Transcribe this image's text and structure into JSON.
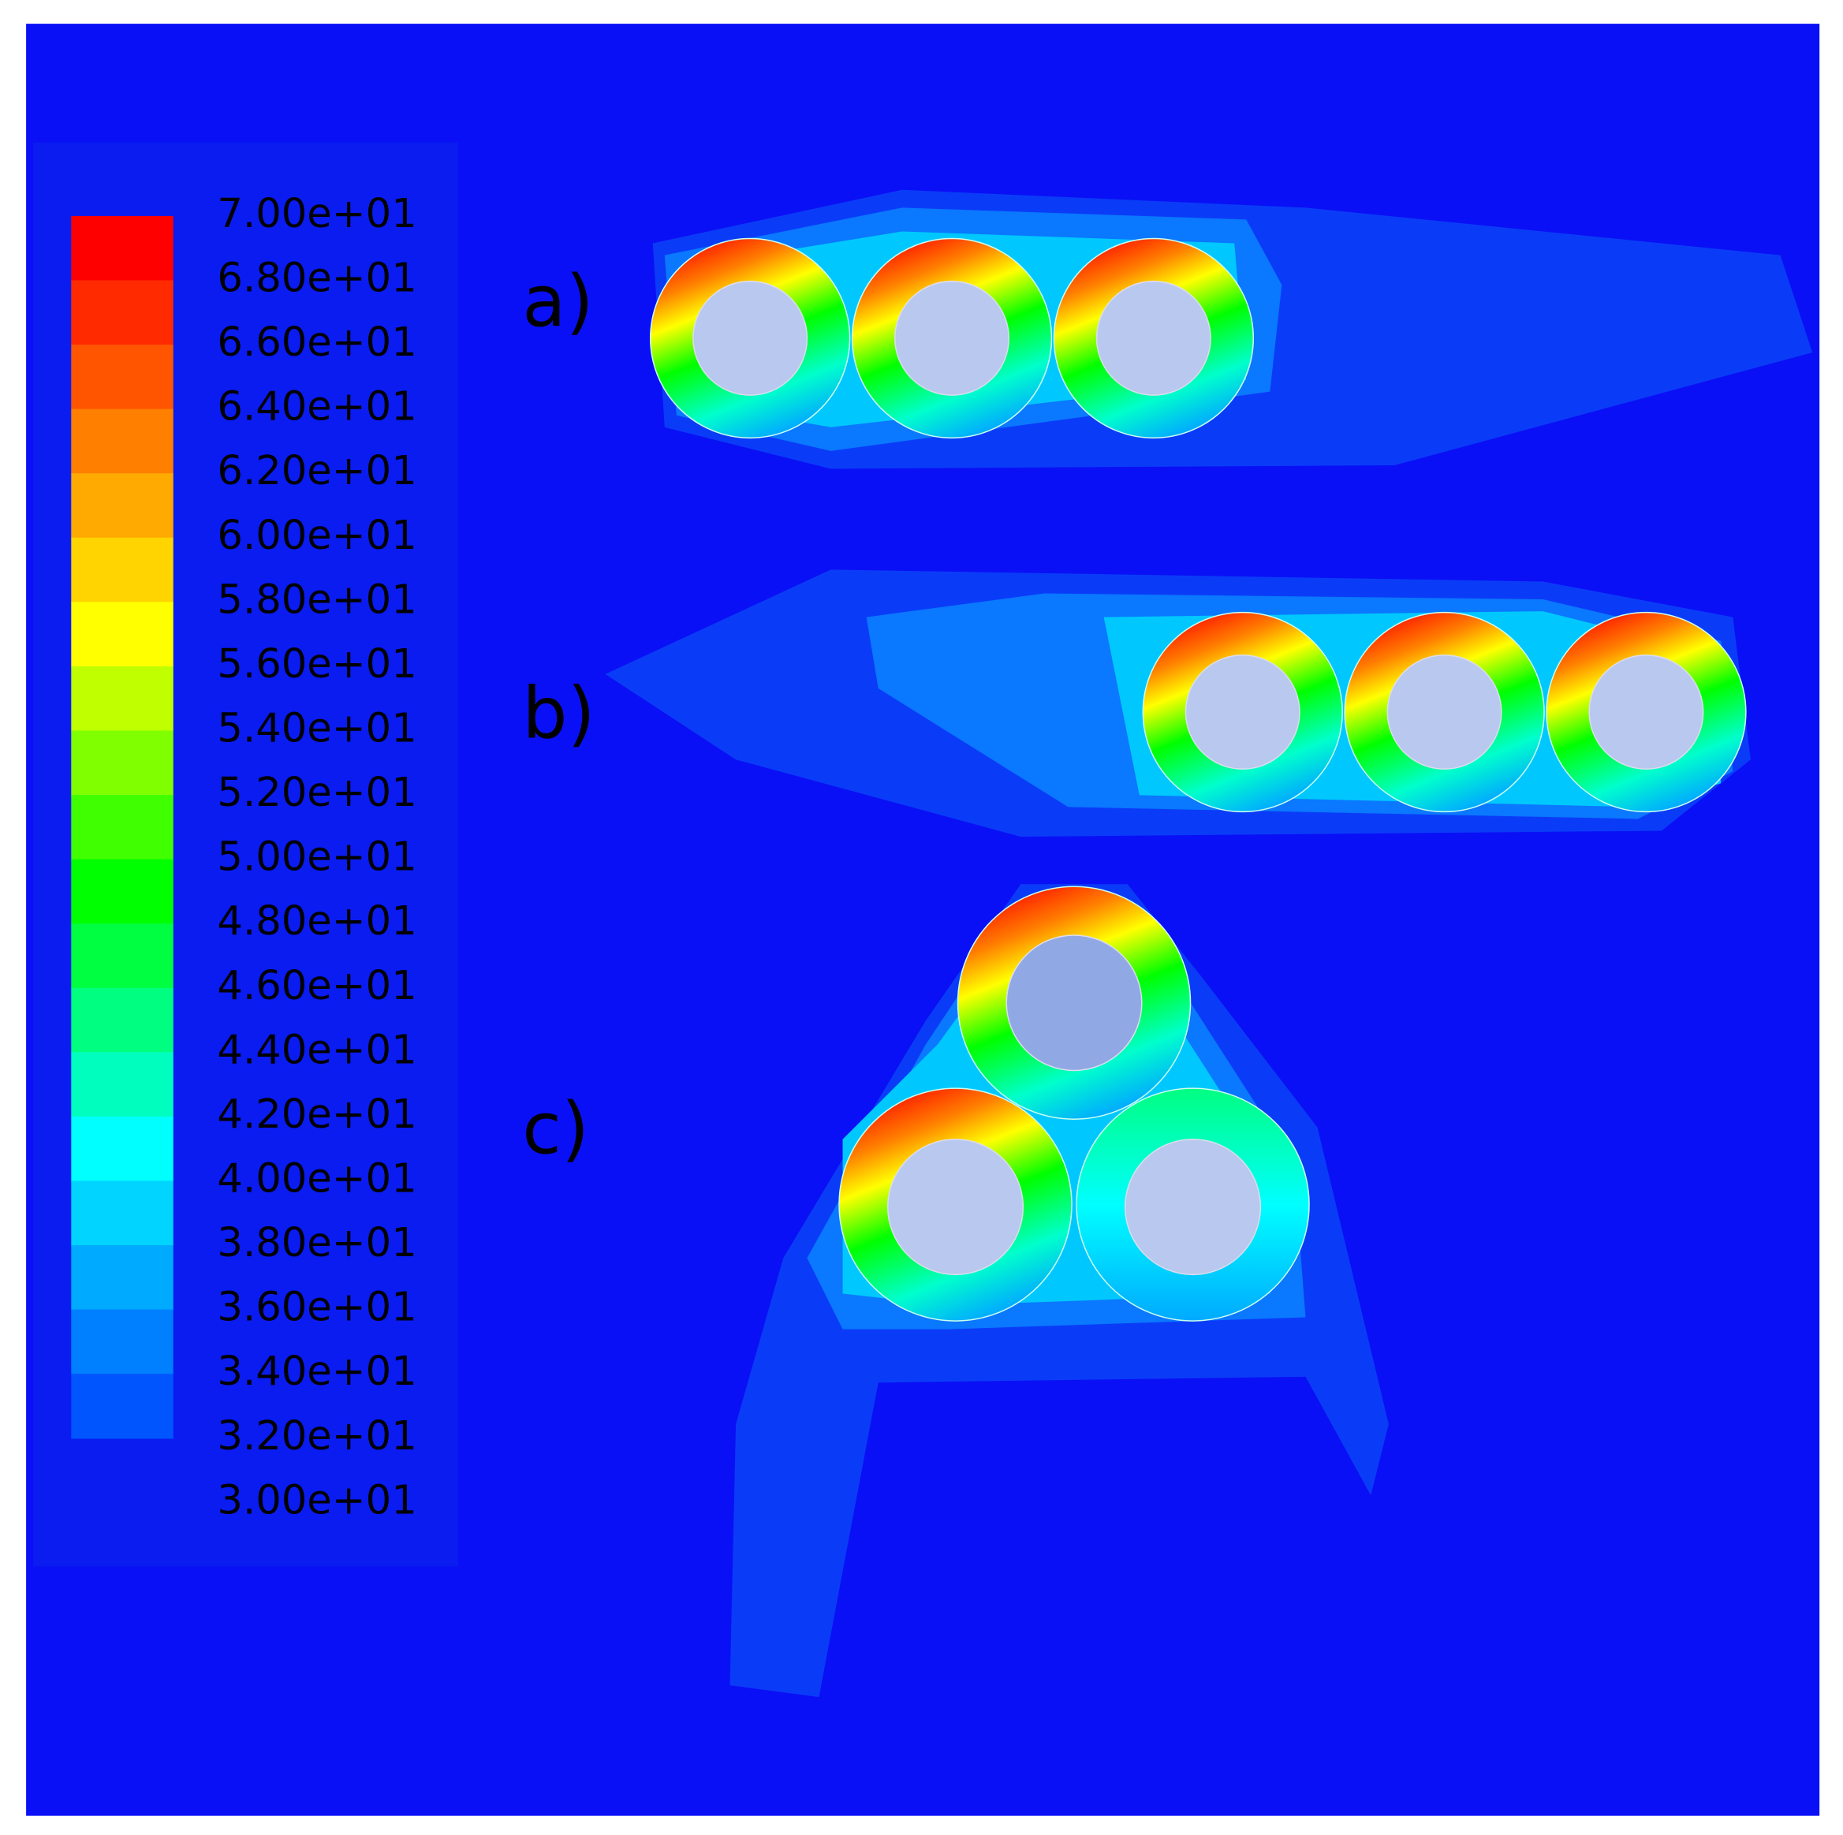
{
  "legend": {
    "labels": [
      "7.00e+01",
      "6.80e+01",
      "6.60e+01",
      "6.40e+01",
      "6.20e+01",
      "6.00e+01",
      "5.80e+01",
      "5.60e+01",
      "5.40e+01",
      "5.20e+01",
      "5.00e+01",
      "4.80e+01",
      "4.60e+01",
      "4.40e+01",
      "4.20e+01",
      "4.00e+01",
      "3.80e+01",
      "3.60e+01",
      "3.40e+01",
      "3.20e+01",
      "3.00e+01"
    ],
    "colors": [
      "#ff0000",
      "#ff2a00",
      "#ff5500",
      "#ff7f00",
      "#ffaa00",
      "#ffd400",
      "#ffff00",
      "#bfff00",
      "#80ff00",
      "#40ff00",
      "#00ff00",
      "#00ff40",
      "#00ff80",
      "#00ffbf",
      "#00ffff",
      "#00d4ff",
      "#00aaff",
      "#007fff",
      "#0055ff"
    ]
  },
  "panels": [
    {
      "label": "a)"
    },
    {
      "label": "b)"
    },
    {
      "label": "c)"
    }
  ]
}
